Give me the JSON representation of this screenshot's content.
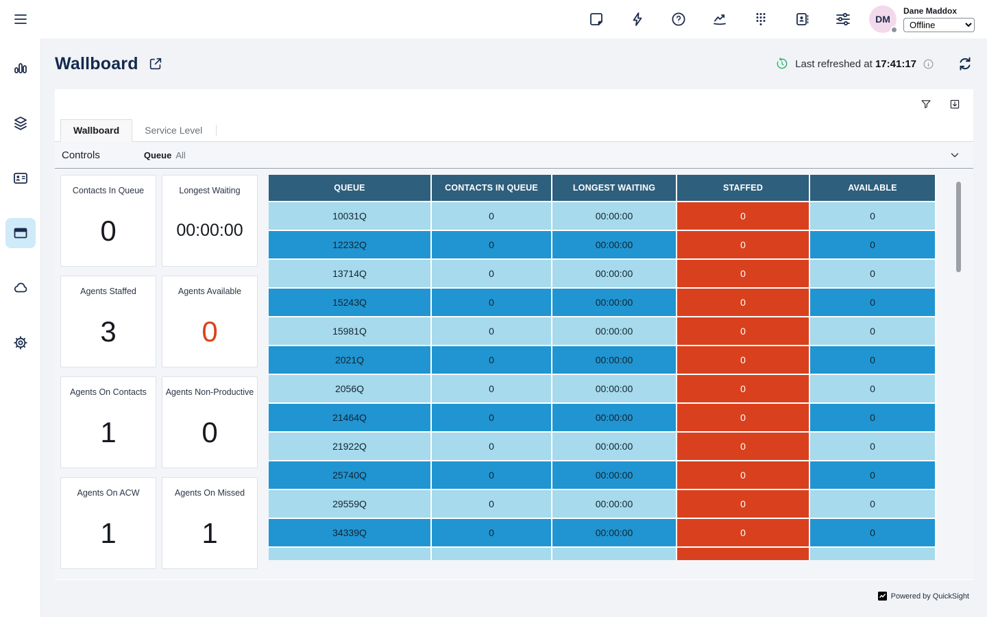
{
  "header": {
    "icons": [
      {
        "name": "notes-icon"
      },
      {
        "name": "quick-actions-icon"
      },
      {
        "name": "help-icon"
      },
      {
        "name": "metrics-icon"
      },
      {
        "name": "dialpad-icon"
      },
      {
        "name": "directory-icon"
      },
      {
        "name": "settings-sliders-icon"
      }
    ],
    "user": {
      "initials": "DM",
      "name": "Dane Maddox",
      "status": "Offline"
    }
  },
  "sidebar": {
    "items": [
      {
        "name": "analytics"
      },
      {
        "name": "layers"
      },
      {
        "name": "contacts-card"
      },
      {
        "name": "wallboard",
        "active": true
      },
      {
        "name": "cloud"
      },
      {
        "name": "settings"
      }
    ]
  },
  "page": {
    "title": "Wallboard",
    "last_refreshed_prefix": "Last refreshed at",
    "last_refreshed_time": "17:41:17"
  },
  "tabs": {
    "wallboard": "Wallboard",
    "service_level": "Service Level"
  },
  "controls": {
    "label": "Controls",
    "queue_label": "Queue",
    "queue_value": "All"
  },
  "cards": [
    {
      "label": "Contacts In Queue",
      "value": "0"
    },
    {
      "label": "Longest Waiting",
      "value": "00:00:00"
    },
    {
      "label": "Agents Staffed",
      "value": "3"
    },
    {
      "label": "Agents Available",
      "value": "0",
      "value_color": "#d8421c"
    },
    {
      "label": "Agents On Contacts",
      "value": "1"
    },
    {
      "label": "Agents Non-Productive",
      "value": "0"
    },
    {
      "label": "Agents On ACW",
      "value": "1"
    },
    {
      "label": "Agents On Missed",
      "value": "1"
    }
  ],
  "chart_data": {
    "type": "table",
    "columns": [
      "QUEUE",
      "CONTACTS IN QUEUE",
      "LONGEST WAITING",
      "STAFFED",
      "AVAILABLE"
    ],
    "rows": [
      [
        "10031Q",
        "0",
        "00:00:00",
        "0",
        "0"
      ],
      [
        "12232Q",
        "0",
        "00:00:00",
        "0",
        "0"
      ],
      [
        "13714Q",
        "0",
        "00:00:00",
        "0",
        "0"
      ],
      [
        "15243Q",
        "0",
        "00:00:00",
        "0",
        "0"
      ],
      [
        "15981Q",
        "0",
        "00:00:00",
        "0",
        "0"
      ],
      [
        "2021Q",
        "0",
        "00:00:00",
        "0",
        "0"
      ],
      [
        "2056Q",
        "0",
        "00:00:00",
        "0",
        "0"
      ],
      [
        "21464Q",
        "0",
        "00:00:00",
        "0",
        "0"
      ],
      [
        "21922Q",
        "0",
        "00:00:00",
        "0",
        "0"
      ],
      [
        "25740Q",
        "0",
        "00:00:00",
        "0",
        "0"
      ],
      [
        "29559Q",
        "0",
        "00:00:00",
        "0",
        "0"
      ],
      [
        "34339Q",
        "0",
        "00:00:00",
        "0",
        "0"
      ]
    ]
  },
  "table": {
    "columns": {
      "c0": "QUEUE",
      "c1": "CONTACTS IN QUEUE",
      "c2": "LONGEST WAITING",
      "c3": "STAFFED",
      "c4": "AVAILABLE"
    },
    "rows": [
      {
        "queue": "10031Q",
        "contacts": "0",
        "longest": "00:00:00",
        "staffed": "0",
        "available": "0"
      },
      {
        "queue": "12232Q",
        "contacts": "0",
        "longest": "00:00:00",
        "staffed": "0",
        "available": "0"
      },
      {
        "queue": "13714Q",
        "contacts": "0",
        "longest": "00:00:00",
        "staffed": "0",
        "available": "0"
      },
      {
        "queue": "15243Q",
        "contacts": "0",
        "longest": "00:00:00",
        "staffed": "0",
        "available": "0"
      },
      {
        "queue": "15981Q",
        "contacts": "0",
        "longest": "00:00:00",
        "staffed": "0",
        "available": "0"
      },
      {
        "queue": "2021Q",
        "contacts": "0",
        "longest": "00:00:00",
        "staffed": "0",
        "available": "0"
      },
      {
        "queue": "2056Q",
        "contacts": "0",
        "longest": "00:00:00",
        "staffed": "0",
        "available": "0"
      },
      {
        "queue": "21464Q",
        "contacts": "0",
        "longest": "00:00:00",
        "staffed": "0",
        "available": "0"
      },
      {
        "queue": "21922Q",
        "contacts": "0",
        "longest": "00:00:00",
        "staffed": "0",
        "available": "0"
      },
      {
        "queue": "25740Q",
        "contacts": "0",
        "longest": "00:00:00",
        "staffed": "0",
        "available": "0"
      },
      {
        "queue": "29559Q",
        "contacts": "0",
        "longest": "00:00:00",
        "staffed": "0",
        "available": "0"
      },
      {
        "queue": "34339Q",
        "contacts": "0",
        "longest": "00:00:00",
        "staffed": "0",
        "available": "0"
      },
      {
        "queue": "",
        "contacts": "",
        "longest": "",
        "staffed": "",
        "available": ""
      }
    ]
  },
  "footer": {
    "powered_by": "Powered by QuickSight"
  },
  "colors": {
    "accent_navy": "#132a4c",
    "table_header": "#2e5f7d",
    "row_light": "#a6daec",
    "row_dark": "#2095d2",
    "staffed_alert": "#d9411e",
    "kpi_alert": "#d8421c",
    "refresh_green": "#2bb673",
    "active_nav_bg": "#cfeaf8",
    "avatar_bg": "#f3d9ec"
  }
}
